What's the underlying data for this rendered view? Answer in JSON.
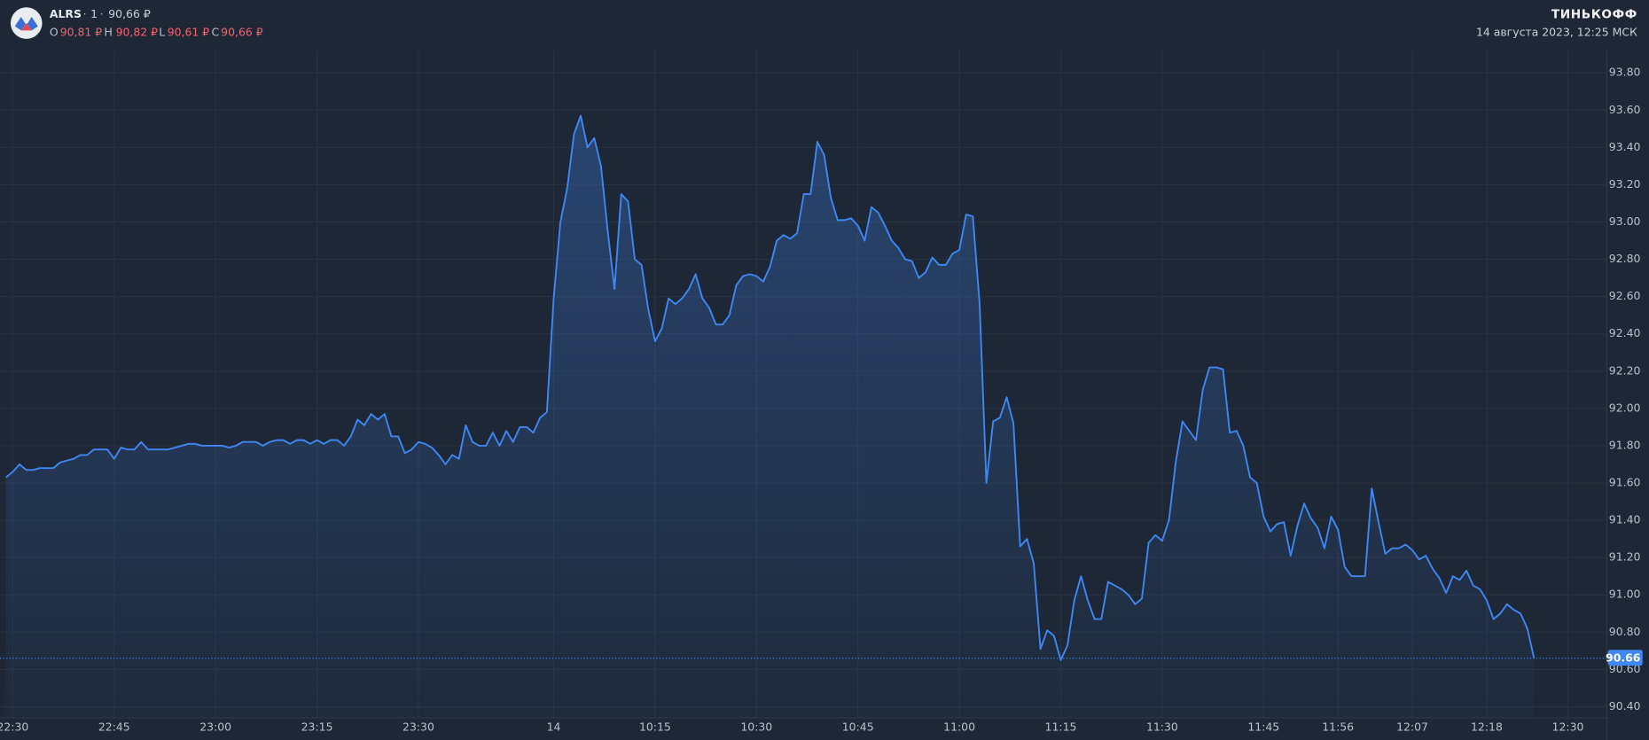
{
  "header": {
    "ticker": "ALRS",
    "interval": "1",
    "price": "90,66 ₽",
    "ohlc": [
      {
        "label": "O",
        "value": "90,81 ₽"
      },
      {
        "label": "H",
        "value": "90,82 ₽"
      },
      {
        "label": "L",
        "value": "90,61 ₽"
      },
      {
        "label": "C",
        "value": "90,66 ₽"
      }
    ],
    "brand": "ТИНЬКОФФ",
    "datetime": "14 августа 2023, 12:25 МСК"
  },
  "chart_data": {
    "type": "area",
    "color": "#3f87f2",
    "grid": true,
    "categories": [
      null,
      "22:30",
      null,
      null,
      null,
      null,
      null,
      null,
      null,
      null,
      null,
      null,
      null,
      null,
      null,
      null,
      "22:45",
      null,
      null,
      null,
      null,
      null,
      null,
      null,
      null,
      null,
      null,
      null,
      null,
      null,
      null,
      "23:00",
      null,
      null,
      null,
      null,
      null,
      null,
      null,
      null,
      null,
      null,
      null,
      null,
      null,
      null,
      "23:15",
      null,
      null,
      null,
      null,
      null,
      null,
      null,
      null,
      null,
      null,
      null,
      null,
      null,
      null,
      "23:30",
      null,
      null,
      null,
      null,
      null,
      null,
      null,
      null,
      null,
      null,
      null,
      null,
      null,
      null,
      null,
      null,
      null,
      null,
      null,
      "14",
      null,
      null,
      null,
      null,
      null,
      null,
      null,
      null,
      null,
      null,
      null,
      null,
      null,
      null,
      "10:15",
      null,
      null,
      null,
      null,
      null,
      null,
      null,
      null,
      null,
      null,
      null,
      null,
      null,
      null,
      "10:30",
      null,
      null,
      null,
      null,
      null,
      null,
      null,
      null,
      null,
      null,
      null,
      null,
      null,
      null,
      "10:45",
      null,
      null,
      null,
      null,
      null,
      null,
      null,
      null,
      null,
      null,
      null,
      null,
      null,
      null,
      "11:00",
      null,
      null,
      null,
      null,
      null,
      null,
      null,
      null,
      null,
      null,
      null,
      null,
      null,
      null,
      "11:15",
      null,
      null,
      null,
      null,
      null,
      null,
      null,
      null,
      null,
      null,
      null,
      null,
      null,
      null,
      "11:30",
      null,
      null,
      null,
      null,
      null,
      null,
      null,
      null,
      null,
      null,
      null,
      null,
      null,
      null,
      "11:45",
      null,
      null,
      null,
      null,
      null,
      null,
      null,
      null,
      null,
      null,
      "11:56",
      null,
      null,
      null,
      null,
      null,
      null,
      null,
      null,
      null,
      null,
      "12:07",
      null,
      null,
      null,
      null,
      null,
      null,
      null,
      null,
      null,
      null,
      "12:18",
      null,
      null,
      null,
      null,
      null,
      null,
      null,
      null,
      null,
      null,
      null,
      "12:30"
    ],
    "values": [
      91.63,
      91.66,
      91.7,
      91.67,
      91.67,
      91.68,
      91.68,
      91.68,
      91.71,
      91.72,
      91.73,
      91.75,
      91.75,
      91.78,
      91.78,
      91.78,
      91.73,
      91.79,
      91.78,
      91.78,
      91.82,
      91.78,
      91.78,
      91.78,
      91.78,
      91.79,
      91.8,
      91.81,
      91.81,
      91.8,
      91.8,
      91.8,
      91.8,
      91.79,
      91.8,
      91.82,
      91.82,
      91.82,
      91.8,
      91.82,
      91.83,
      91.83,
      91.81,
      91.83,
      91.83,
      91.81,
      91.83,
      91.81,
      91.83,
      91.83,
      91.8,
      91.85,
      91.94,
      91.91,
      91.97,
      91.94,
      91.97,
      91.85,
      91.85,
      91.76,
      91.78,
      91.82,
      91.81,
      91.79,
      91.75,
      91.7,
      91.75,
      91.73,
      91.91,
      91.82,
      91.8,
      91.8,
      91.87,
      91.8,
      91.88,
      91.82,
      91.9,
      91.9,
      91.87,
      91.95,
      91.98,
      92.59,
      93.0,
      93.18,
      93.47,
      93.57,
      93.4,
      93.45,
      93.3,
      92.95,
      92.64,
      93.15,
      93.11,
      92.8,
      92.77,
      92.53,
      92.36,
      92.43,
      92.59,
      92.56,
      92.59,
      92.64,
      92.72,
      92.59,
      92.54,
      92.45,
      92.45,
      92.5,
      92.66,
      92.71,
      92.72,
      92.71,
      92.68,
      92.76,
      92.9,
      92.93,
      92.91,
      92.94,
      93.15,
      93.15,
      93.43,
      93.36,
      93.13,
      93.01,
      93.01,
      93.02,
      92.98,
      92.9,
      93.08,
      93.05,
      92.98,
      92.9,
      92.86,
      92.8,
      92.79,
      92.7,
      92.73,
      92.81,
      92.77,
      92.77,
      92.83,
      92.85,
      93.04,
      93.03,
      92.56,
      91.6,
      91.93,
      91.95,
      92.06,
      91.92,
      91.26,
      91.3,
      91.17,
      90.71,
      90.81,
      90.78,
      90.65,
      90.73,
      90.97,
      91.1,
      90.97,
      90.87,
      90.87,
      91.07,
      91.05,
      91.03,
      91.0,
      90.95,
      90.98,
      91.28,
      91.32,
      91.29,
      91.4,
      91.71,
      91.93,
      91.88,
      91.83,
      92.1,
      92.22,
      92.22,
      92.21,
      91.87,
      91.88,
      91.8,
      91.63,
      91.6,
      91.42,
      91.34,
      91.38,
      91.39,
      91.21,
      91.37,
      91.49,
      91.41,
      91.36,
      91.25,
      91.42,
      91.35,
      91.15,
      91.1,
      91.1,
      91.1,
      91.57,
      91.39,
      91.22,
      91.25,
      91.25,
      91.27,
      91.24,
      91.19,
      91.21,
      91.14,
      91.09,
      91.01,
      91.1,
      91.08,
      91.13,
      91.05,
      91.03,
      90.97,
      90.87,
      90.9,
      90.95,
      90.92,
      90.9,
      90.82,
      90.66,
      null,
      null,
      null,
      null,
      null
    ],
    "ylim": [
      90.34,
      93.92
    ],
    "yticks": [
      {
        "value": 90.4,
        "label": "90.40"
      },
      {
        "value": 90.6,
        "label": "90.60"
      },
      {
        "value": 90.8,
        "label": "90.80"
      },
      {
        "value": 91.0,
        "label": "91.00"
      },
      {
        "value": 91.2,
        "label": "91.20"
      },
      {
        "value": 91.4,
        "label": "91.40"
      },
      {
        "value": 91.6,
        "label": "91.60"
      },
      {
        "value": 91.8,
        "label": "91.80"
      },
      {
        "value": 92.0,
        "label": "92.00"
      },
      {
        "value": 92.2,
        "label": "92.20"
      },
      {
        "value": 92.4,
        "label": "92.40"
      },
      {
        "value": 92.6,
        "label": "92.60"
      },
      {
        "value": 92.8,
        "label": "92.80"
      },
      {
        "value": 93.0,
        "label": "93.00"
      },
      {
        "value": 93.2,
        "label": "93.20"
      },
      {
        "value": 93.4,
        "label": "93.40"
      },
      {
        "value": 93.6,
        "label": "93.60"
      },
      {
        "value": 93.8,
        "label": "93.80"
      }
    ],
    "last_price": {
      "value": 90.66,
      "label": "90.66"
    }
  }
}
